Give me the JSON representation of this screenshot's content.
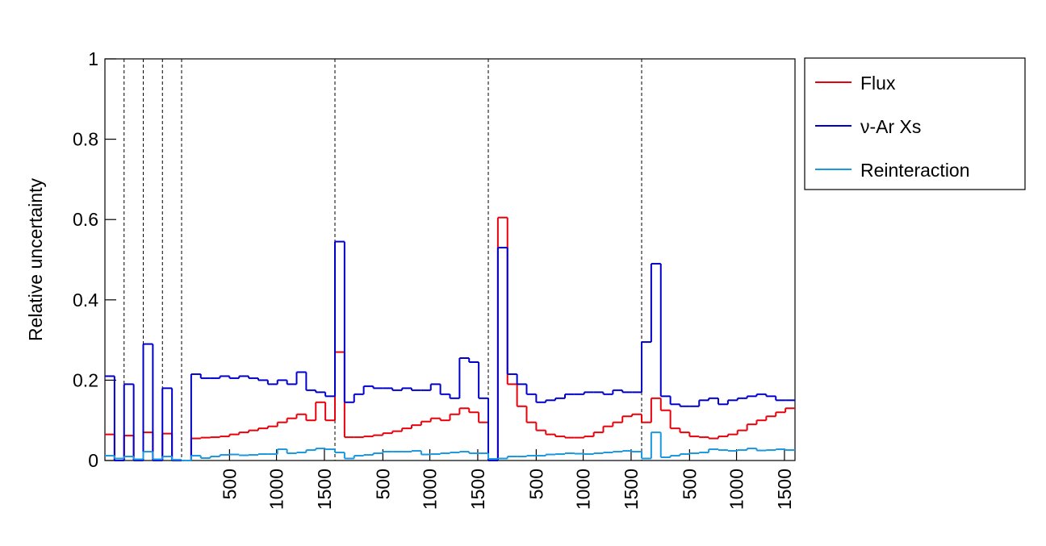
{
  "chart_data": {
    "type": "histogram",
    "y_label": "Relative uncertainty",
    "bins": [
      0,
      1,
      2,
      3,
      4,
      5,
      6,
      7,
      8,
      9,
      10,
      11,
      12,
      13,
      14,
      15,
      16,
      17,
      18,
      19,
      20,
      21,
      22,
      23,
      24,
      25,
      26,
      27,
      28,
      29,
      30,
      31,
      32,
      33,
      34,
      35,
      36,
      37,
      38,
      39,
      40,
      41,
      42,
      43,
      44,
      45,
      46,
      47,
      48,
      49,
      50,
      51,
      52,
      53,
      54,
      55,
      56,
      57,
      58,
      59,
      60,
      61,
      62,
      63,
      64,
      65,
      66,
      67,
      68,
      69,
      70,
      71,
      72
    ],
    "xlim": [
      0,
      72
    ],
    "xticks": [
      {
        "value": 13,
        "label": "500"
      },
      {
        "value": 17.9,
        "label": "1000"
      },
      {
        "value": 22.9,
        "label": "1500"
      },
      {
        "value": 29,
        "label": "500"
      },
      {
        "value": 33.9,
        "label": "1000"
      },
      {
        "value": 38.9,
        "label": "1500"
      },
      {
        "value": 45,
        "label": "500"
      },
      {
        "value": 49.9,
        "label": "1000"
      },
      {
        "value": 54.9,
        "label": "1500"
      },
      {
        "value": 61,
        "label": "500"
      },
      {
        "value": 65.9,
        "label": "1000"
      },
      {
        "value": 70.9,
        "label": "1500"
      }
    ],
    "dividers": [
      2,
      4,
      6,
      8,
      24,
      40,
      56
    ],
    "ylim": [
      0,
      1
    ],
    "yticks": [
      0,
      0.2,
      0.4,
      0.6,
      0.8,
      1
    ],
    "legend": "outside-top-right",
    "series": [
      {
        "name": "Flux",
        "color": "#e8000b",
        "values": [
          0.065,
          0,
          0.062,
          0,
          0.07,
          0,
          0.067,
          0,
          0,
          0.055,
          0.057,
          0.058,
          0.06,
          0.065,
          0.07,
          0.075,
          0.08,
          0.085,
          0.095,
          0.105,
          0.115,
          0.1,
          0.145,
          0.1,
          0.27,
          0.058,
          0.058,
          0.06,
          0.063,
          0.068,
          0.073,
          0.08,
          0.088,
          0.097,
          0.105,
          0.1,
          0.115,
          0.13,
          0.12,
          0.095,
          0,
          0.605,
          0.19,
          0.135,
          0.095,
          0.075,
          0.065,
          0.06,
          0.057,
          0.057,
          0.06,
          0.07,
          0.085,
          0.095,
          0.11,
          0.115,
          0.095,
          0.155,
          0.125,
          0.08,
          0.07,
          0.06,
          0.058,
          0.055,
          0.06,
          0.065,
          0.075,
          0.09,
          0.1,
          0.11,
          0.12,
          0.13
        ]
      },
      {
        "name": "ν-Ar Xs",
        "color": "#0000cc",
        "values": [
          0.21,
          0,
          0.19,
          0,
          0.29,
          0,
          0.18,
          0,
          0,
          0.215,
          0.205,
          0.205,
          0.21,
          0.205,
          0.21,
          0.205,
          0.2,
          0.19,
          0.2,
          0.19,
          0.22,
          0.175,
          0.17,
          0.16,
          0.545,
          0.145,
          0.165,
          0.185,
          0.18,
          0.18,
          0.175,
          0.18,
          0.175,
          0.175,
          0.19,
          0.165,
          0.155,
          0.255,
          0.245,
          0.155,
          0,
          0.53,
          0.215,
          0.19,
          0.165,
          0.145,
          0.15,
          0.155,
          0.165,
          0.165,
          0.17,
          0.17,
          0.165,
          0.175,
          0.17,
          0.17,
          0.295,
          0.49,
          0.16,
          0.14,
          0.135,
          0.135,
          0.15,
          0.155,
          0.14,
          0.15,
          0.155,
          0.16,
          0.165,
          0.16,
          0.15,
          0.15
        ]
      },
      {
        "name": "Reinteraction",
        "color": "#1a98e0",
        "values": [
          0.012,
          0.005,
          0.01,
          0.003,
          0.022,
          0.003,
          0.01,
          0.002,
          0,
          0.012,
          0.006,
          0.01,
          0.014,
          0.015,
          0.013,
          0.014,
          0.016,
          0.016,
          0.028,
          0.018,
          0.02,
          0.026,
          0.03,
          0.028,
          0.02,
          0.005,
          0.012,
          0.014,
          0.018,
          0.022,
          0.022,
          0.022,
          0.024,
          0.015,
          0.016,
          0.018,
          0.02,
          0.022,
          0.018,
          0.018,
          0.004,
          0.005,
          0.01,
          0.01,
          0.012,
          0.012,
          0.015,
          0.016,
          0.018,
          0.017,
          0.016,
          0.018,
          0.02,
          0.022,
          0.024,
          0.022,
          0.005,
          0.07,
          0.008,
          0.012,
          0.016,
          0.018,
          0.02,
          0.028,
          0.026,
          0.024,
          0.026,
          0.03,
          0.025,
          0.026,
          0.028,
          0.026
        ]
      }
    ]
  }
}
